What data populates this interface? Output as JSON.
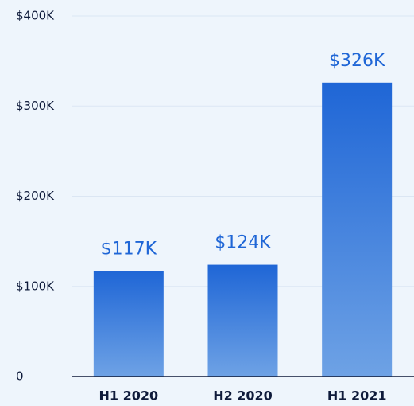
{
  "chart_data": {
    "type": "bar",
    "categories": [
      "H1 2020",
      "H2 2020",
      "H1 2021"
    ],
    "values": [
      117000,
      124000,
      326000
    ],
    "value_labels": [
      "$117K",
      "$124K",
      "$326K"
    ],
    "color": "#1f66d6",
    "ylim": [
      0,
      400000
    ],
    "yticks": [
      0,
      {
        "value": 100000,
        "label": "$100K"
      },
      {
        "value": 200000,
        "label": "$200K"
      },
      {
        "value": 300000,
        "label": "$300K"
      },
      {
        "value": 400000,
        "label": "$400K"
      }
    ],
    "grid": true
  }
}
